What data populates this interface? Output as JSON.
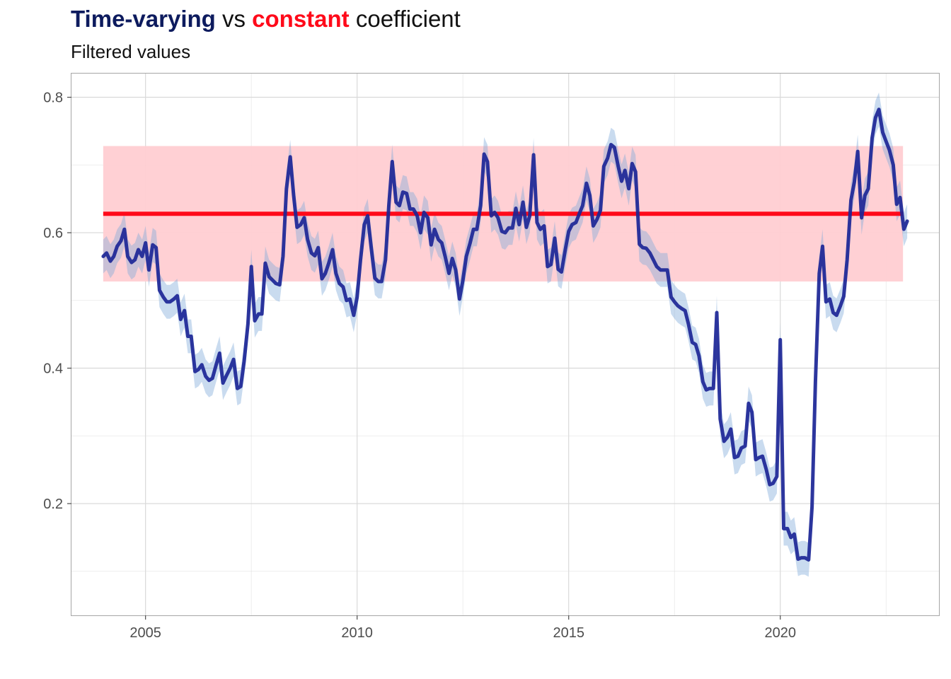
{
  "title": {
    "part1": "Time-varying",
    "part2": " vs ",
    "part3": "constant",
    "part4": " coefficient"
  },
  "subtitle": "Filtered values",
  "colors": {
    "time_varying": "#0d1b5e",
    "line_dark": "#1c2696",
    "band_blue": "#c6d8ee",
    "constant": "#ff0a1a",
    "band_red": "#ffcdd2",
    "grid": "#d9d9d9",
    "border": "#a6a6a6"
  },
  "chart_data": {
    "type": "line",
    "title": "Time-varying vs constant coefficient",
    "subtitle": "Filtered values",
    "xlabel": "",
    "ylabel": "",
    "xlim": [
      2003.25,
      2023.75
    ],
    "ylim": [
      0.035,
      0.835
    ],
    "x_ticks": [
      2005,
      2010,
      2015,
      2020
    ],
    "y_ticks": [
      0.2,
      0.4,
      0.6,
      0.8
    ],
    "grid": true,
    "constant": {
      "value": 0.628,
      "lower": 0.528,
      "upper": 0.728,
      "x_start": 2004.0,
      "x_end": 2022.9
    },
    "series": [
      {
        "name": "time-varying coefficient",
        "band_halfwidth": 0.025,
        "points": [
          [
            2004.0,
            0.565
          ],
          [
            2004.08,
            0.57
          ],
          [
            2004.17,
            0.558
          ],
          [
            2004.25,
            0.565
          ],
          [
            2004.33,
            0.58
          ],
          [
            2004.42,
            0.588
          ],
          [
            2004.5,
            0.605
          ],
          [
            2004.58,
            0.565
          ],
          [
            2004.67,
            0.556
          ],
          [
            2004.75,
            0.56
          ],
          [
            2004.83,
            0.575
          ],
          [
            2004.92,
            0.565
          ],
          [
            2005.0,
            0.585
          ],
          [
            2005.08,
            0.545
          ],
          [
            2005.17,
            0.582
          ],
          [
            2005.25,
            0.578
          ],
          [
            2005.33,
            0.515
          ],
          [
            2005.42,
            0.505
          ],
          [
            2005.5,
            0.498
          ],
          [
            2005.58,
            0.498
          ],
          [
            2005.67,
            0.502
          ],
          [
            2005.75,
            0.507
          ],
          [
            2005.83,
            0.472
          ],
          [
            2005.92,
            0.485
          ],
          [
            2006.0,
            0.447
          ],
          [
            2006.08,
            0.447
          ],
          [
            2006.17,
            0.395
          ],
          [
            2006.25,
            0.398
          ],
          [
            2006.33,
            0.405
          ],
          [
            2006.42,
            0.388
          ],
          [
            2006.5,
            0.382
          ],
          [
            2006.58,
            0.385
          ],
          [
            2006.67,
            0.405
          ],
          [
            2006.75,
            0.422
          ],
          [
            2006.83,
            0.378
          ],
          [
            2006.92,
            0.39
          ],
          [
            2007.0,
            0.4
          ],
          [
            2007.08,
            0.413
          ],
          [
            2007.17,
            0.37
          ],
          [
            2007.25,
            0.373
          ],
          [
            2007.33,
            0.41
          ],
          [
            2007.42,
            0.465
          ],
          [
            2007.5,
            0.55
          ],
          [
            2007.58,
            0.47
          ],
          [
            2007.67,
            0.48
          ],
          [
            2007.75,
            0.48
          ],
          [
            2007.83,
            0.555
          ],
          [
            2007.92,
            0.535
          ],
          [
            2008.0,
            0.53
          ],
          [
            2008.08,
            0.525
          ],
          [
            2008.17,
            0.523
          ],
          [
            2008.25,
            0.565
          ],
          [
            2008.33,
            0.665
          ],
          [
            2008.42,
            0.712
          ],
          [
            2008.5,
            0.655
          ],
          [
            2008.58,
            0.608
          ],
          [
            2008.67,
            0.612
          ],
          [
            2008.75,
            0.622
          ],
          [
            2008.83,
            0.59
          ],
          [
            2008.92,
            0.57
          ],
          [
            2009.0,
            0.566
          ],
          [
            2009.08,
            0.578
          ],
          [
            2009.17,
            0.532
          ],
          [
            2009.25,
            0.54
          ],
          [
            2009.33,
            0.555
          ],
          [
            2009.42,
            0.575
          ],
          [
            2009.5,
            0.54
          ],
          [
            2009.58,
            0.525
          ],
          [
            2009.67,
            0.52
          ],
          [
            2009.75,
            0.5
          ],
          [
            2009.83,
            0.502
          ],
          [
            2009.92,
            0.478
          ],
          [
            2010.0,
            0.505
          ],
          [
            2010.08,
            0.56
          ],
          [
            2010.17,
            0.612
          ],
          [
            2010.25,
            0.625
          ],
          [
            2010.33,
            0.58
          ],
          [
            2010.42,
            0.533
          ],
          [
            2010.5,
            0.528
          ],
          [
            2010.58,
            0.528
          ],
          [
            2010.67,
            0.56
          ],
          [
            2010.75,
            0.64
          ],
          [
            2010.83,
            0.705
          ],
          [
            2010.92,
            0.645
          ],
          [
            2011.0,
            0.64
          ],
          [
            2011.08,
            0.66
          ],
          [
            2011.17,
            0.658
          ],
          [
            2011.25,
            0.635
          ],
          [
            2011.33,
            0.635
          ],
          [
            2011.42,
            0.625
          ],
          [
            2011.5,
            0.6
          ],
          [
            2011.58,
            0.63
          ],
          [
            2011.67,
            0.622
          ],
          [
            2011.75,
            0.582
          ],
          [
            2011.83,
            0.605
          ],
          [
            2011.92,
            0.59
          ],
          [
            2012.0,
            0.585
          ],
          [
            2012.08,
            0.565
          ],
          [
            2012.17,
            0.54
          ],
          [
            2012.25,
            0.562
          ],
          [
            2012.33,
            0.545
          ],
          [
            2012.42,
            0.502
          ],
          [
            2012.5,
            0.53
          ],
          [
            2012.58,
            0.565
          ],
          [
            2012.67,
            0.585
          ],
          [
            2012.75,
            0.605
          ],
          [
            2012.83,
            0.605
          ],
          [
            2012.92,
            0.64
          ],
          [
            2013.0,
            0.716
          ],
          [
            2013.08,
            0.705
          ],
          [
            2013.17,
            0.625
          ],
          [
            2013.25,
            0.63
          ],
          [
            2013.33,
            0.622
          ],
          [
            2013.42,
            0.602
          ],
          [
            2013.5,
            0.6
          ],
          [
            2013.58,
            0.607
          ],
          [
            2013.67,
            0.607
          ],
          [
            2013.75,
            0.636
          ],
          [
            2013.83,
            0.612
          ],
          [
            2013.92,
            0.645
          ],
          [
            2014.0,
            0.608
          ],
          [
            2014.08,
            0.625
          ],
          [
            2014.17,
            0.715
          ],
          [
            2014.25,
            0.615
          ],
          [
            2014.33,
            0.605
          ],
          [
            2014.42,
            0.61
          ],
          [
            2014.5,
            0.55
          ],
          [
            2014.58,
            0.553
          ],
          [
            2014.67,
            0.592
          ],
          [
            2014.75,
            0.546
          ],
          [
            2014.83,
            0.542
          ],
          [
            2014.92,
            0.575
          ],
          [
            2015.0,
            0.602
          ],
          [
            2015.08,
            0.612
          ],
          [
            2015.17,
            0.615
          ],
          [
            2015.25,
            0.628
          ],
          [
            2015.33,
            0.64
          ],
          [
            2015.42,
            0.673
          ],
          [
            2015.5,
            0.655
          ],
          [
            2015.58,
            0.61
          ],
          [
            2015.67,
            0.62
          ],
          [
            2015.75,
            0.633
          ],
          [
            2015.83,
            0.698
          ],
          [
            2015.92,
            0.71
          ],
          [
            2016.0,
            0.73
          ],
          [
            2016.08,
            0.726
          ],
          [
            2016.17,
            0.698
          ],
          [
            2016.25,
            0.676
          ],
          [
            2016.33,
            0.692
          ],
          [
            2016.42,
            0.665
          ],
          [
            2016.5,
            0.702
          ],
          [
            2016.58,
            0.69
          ],
          [
            2016.67,
            0.583
          ],
          [
            2016.75,
            0.578
          ],
          [
            2016.83,
            0.577
          ],
          [
            2016.92,
            0.57
          ],
          [
            2017.0,
            0.56
          ],
          [
            2017.08,
            0.55
          ],
          [
            2017.17,
            0.545
          ],
          [
            2017.25,
            0.545
          ],
          [
            2017.33,
            0.545
          ],
          [
            2017.42,
            0.505
          ],
          [
            2017.5,
            0.498
          ],
          [
            2017.58,
            0.492
          ],
          [
            2017.67,
            0.488
          ],
          [
            2017.75,
            0.485
          ],
          [
            2017.83,
            0.465
          ],
          [
            2017.92,
            0.438
          ],
          [
            2018.0,
            0.435
          ],
          [
            2018.08,
            0.418
          ],
          [
            2018.17,
            0.38
          ],
          [
            2018.25,
            0.368
          ],
          [
            2018.33,
            0.37
          ],
          [
            2018.42,
            0.37
          ],
          [
            2018.5,
            0.482
          ],
          [
            2018.58,
            0.325
          ],
          [
            2018.67,
            0.292
          ],
          [
            2018.75,
            0.298
          ],
          [
            2018.83,
            0.31
          ],
          [
            2018.92,
            0.268
          ],
          [
            2019.0,
            0.27
          ],
          [
            2019.08,
            0.282
          ],
          [
            2019.17,
            0.285
          ],
          [
            2019.25,
            0.348
          ],
          [
            2019.33,
            0.335
          ],
          [
            2019.42,
            0.265
          ],
          [
            2019.5,
            0.268
          ],
          [
            2019.58,
            0.27
          ],
          [
            2019.67,
            0.25
          ],
          [
            2019.75,
            0.228
          ],
          [
            2019.83,
            0.23
          ],
          [
            2019.92,
            0.24
          ],
          [
            2020.0,
            0.442
          ],
          [
            2020.08,
            0.163
          ],
          [
            2020.17,
            0.163
          ],
          [
            2020.25,
            0.15
          ],
          [
            2020.33,
            0.155
          ],
          [
            2020.42,
            0.118
          ],
          [
            2020.5,
            0.12
          ],
          [
            2020.58,
            0.12
          ],
          [
            2020.67,
            0.117
          ],
          [
            2020.75,
            0.195
          ],
          [
            2020.83,
            0.38
          ],
          [
            2020.92,
            0.54
          ],
          [
            2021.0,
            0.58
          ],
          [
            2021.08,
            0.498
          ],
          [
            2021.17,
            0.502
          ],
          [
            2021.25,
            0.482
          ],
          [
            2021.33,
            0.478
          ],
          [
            2021.42,
            0.492
          ],
          [
            2021.5,
            0.506
          ],
          [
            2021.58,
            0.56
          ],
          [
            2021.67,
            0.648
          ],
          [
            2021.75,
            0.675
          ],
          [
            2021.83,
            0.72
          ],
          [
            2021.92,
            0.622
          ],
          [
            2022.0,
            0.655
          ],
          [
            2022.08,
            0.665
          ],
          [
            2022.17,
            0.74
          ],
          [
            2022.25,
            0.77
          ],
          [
            2022.33,
            0.782
          ],
          [
            2022.42,
            0.748
          ],
          [
            2022.5,
            0.735
          ],
          [
            2022.58,
            0.722
          ],
          [
            2022.67,
            0.7
          ],
          [
            2022.75,
            0.642
          ],
          [
            2022.83,
            0.652
          ],
          [
            2022.92,
            0.605
          ],
          [
            2023.0,
            0.617
          ]
        ]
      },
      {
        "name": "constant coefficient",
        "value": 0.628
      }
    ]
  }
}
